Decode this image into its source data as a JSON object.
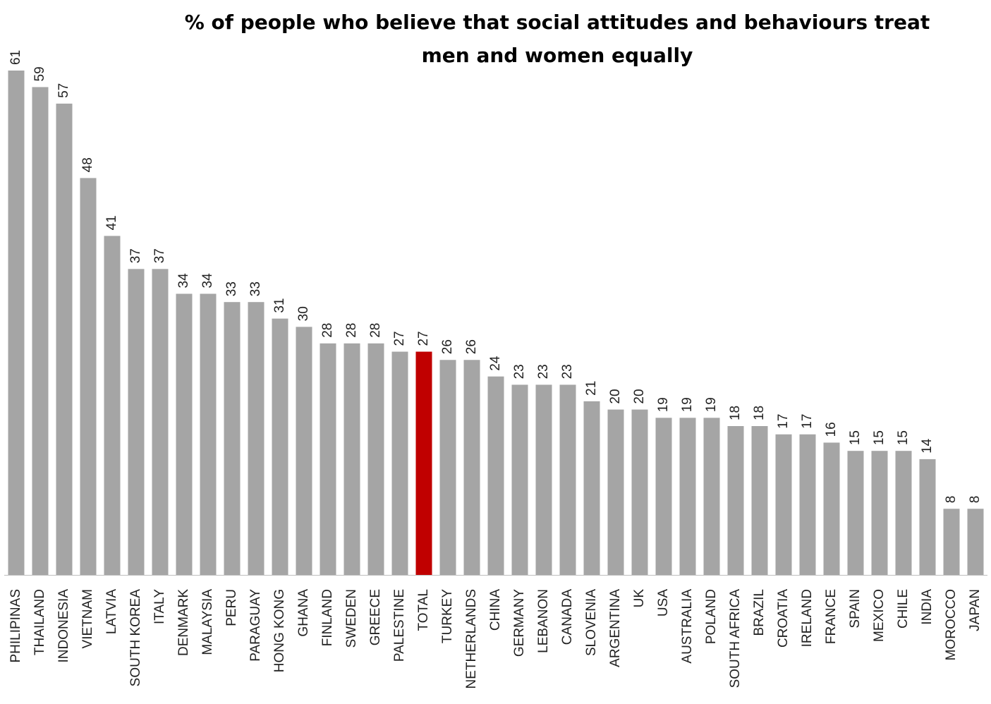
{
  "chart_data": {
    "type": "bar",
    "title": "% of people who believe that social attitudes and behaviours treat men and women equally",
    "categories": [
      "PHILIPINAS",
      "THAILAND",
      "INDONESIA",
      "VIETNAM",
      "LATVIA",
      "SOUTH KOREA",
      "ITALY",
      "DENMARK",
      "MALAYSIA",
      "PERU",
      "PARAGUAY",
      "HONG KONG",
      "GHANA",
      "FINLAND",
      "SWEDEN",
      "GREECE",
      "PALESTINE",
      "TOTAL",
      "TURKEY",
      "NETHERLANDS",
      "CHINA",
      "GERMANY",
      "LEBANON",
      "CANADA",
      "SLOVENIA",
      "ARGENTINA",
      "UK",
      "USA",
      "AUSTRALIA",
      "POLAND",
      "SOUTH AFRICA",
      "BRAZIL",
      "CROATIA",
      "IRELAND",
      "FRANCE",
      "SPAIN",
      "MEXICO",
      "CHILE",
      "INDIA",
      "MOROCCO",
      "JAPAN"
    ],
    "values": [
      61,
      59,
      57,
      48,
      41,
      37,
      37,
      34,
      34,
      33,
      33,
      31,
      30,
      28,
      28,
      28,
      27,
      27,
      26,
      26,
      24,
      23,
      23,
      23,
      21,
      20,
      20,
      19,
      19,
      19,
      18,
      18,
      17,
      17,
      16,
      15,
      15,
      15,
      14,
      8,
      8
    ],
    "colors": [
      "#a5a5a5",
      "#a5a5a5",
      "#a5a5a5",
      "#a5a5a5",
      "#a5a5a5",
      "#a5a5a5",
      "#a5a5a5",
      "#a5a5a5",
      "#a5a5a5",
      "#a5a5a5",
      "#a5a5a5",
      "#a5a5a5",
      "#a5a5a5",
      "#a5a5a5",
      "#a5a5a5",
      "#a5a5a5",
      "#a5a5a5",
      "#c00000",
      "#a5a5a5",
      "#a5a5a5",
      "#a5a5a5",
      "#a5a5a5",
      "#a5a5a5",
      "#a5a5a5",
      "#a5a5a5",
      "#a5a5a5",
      "#a5a5a5",
      "#a5a5a5",
      "#a5a5a5",
      "#a5a5a5",
      "#a5a5a5",
      "#a5a5a5",
      "#a5a5a5",
      "#a5a5a5",
      "#a5a5a5",
      "#a5a5a5",
      "#a5a5a5",
      "#a5a5a5",
      "#a5a5a5",
      "#a5a5a5",
      "#a5a5a5"
    ]
  }
}
